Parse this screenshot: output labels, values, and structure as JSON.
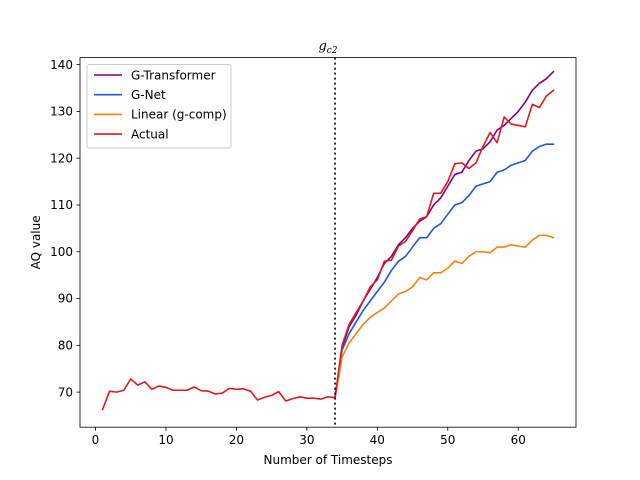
{
  "chart_data": {
    "type": "line",
    "title": "g",
    "title_subscript": "c2",
    "xlabel": "Number of Timesteps",
    "ylabel": "AQ value",
    "xlim": [
      -2.2,
      68.2
    ],
    "ylim": [
      62.5,
      141.5
    ],
    "xticks": [
      0,
      10,
      20,
      30,
      40,
      50,
      60
    ],
    "yticks": [
      70,
      80,
      90,
      100,
      110,
      120,
      130,
      140
    ],
    "grid": false,
    "legend_position": "top-left",
    "vline": {
      "x": 34,
      "style": "dotted",
      "color": "#000000"
    },
    "x": [
      1,
      2,
      3,
      4,
      5,
      6,
      7,
      8,
      9,
      10,
      11,
      12,
      13,
      14,
      15,
      16,
      17,
      18,
      19,
      20,
      21,
      22,
      23,
      24,
      25,
      26,
      27,
      28,
      29,
      30,
      31,
      32,
      33,
      34,
      35,
      36,
      37,
      38,
      39,
      40,
      41,
      42,
      43,
      44,
      45,
      46,
      47,
      48,
      49,
      50,
      51,
      52,
      53,
      54,
      55,
      56,
      57,
      58,
      59,
      60,
      61,
      62,
      63,
      64,
      65
    ],
    "series": [
      {
        "name": "G-Transformer",
        "color": "#800080",
        "values": [
          null,
          null,
          null,
          null,
          null,
          null,
          null,
          null,
          null,
          null,
          null,
          null,
          null,
          null,
          null,
          null,
          null,
          null,
          null,
          null,
          null,
          null,
          null,
          null,
          null,
          null,
          null,
          null,
          null,
          null,
          null,
          null,
          null,
          68.8,
          79.5,
          84,
          86.5,
          89.5,
          92,
          94.5,
          97.5,
          99,
          101.5,
          103,
          105,
          106.5,
          107.5,
          110,
          111.5,
          114,
          116.5,
          117,
          119.5,
          121.5,
          122,
          123.5,
          126,
          127,
          128.5,
          130,
          132,
          134.5,
          136,
          137,
          138.5
        ]
      },
      {
        "name": "G-Net",
        "color": "#1f56e0",
        "values": [
          null,
          null,
          null,
          null,
          null,
          null,
          null,
          null,
          null,
          null,
          null,
          null,
          null,
          null,
          null,
          null,
          null,
          null,
          null,
          null,
          null,
          null,
          null,
          null,
          null,
          null,
          null,
          null,
          null,
          null,
          null,
          null,
          null,
          68.8,
          79,
          82.5,
          85,
          87.5,
          89.5,
          91.5,
          93.5,
          96,
          98,
          99,
          101,
          103,
          103,
          105,
          106,
          108,
          110,
          110.5,
          112,
          114,
          114.5,
          115,
          117,
          117.5,
          118.5,
          119,
          119.5,
          121.5,
          122.5,
          123,
          123
        ]
      },
      {
        "name": "Linear (g-comp)",
        "color": "#ff7f0e",
        "values": [
          null,
          null,
          null,
          null,
          null,
          null,
          null,
          null,
          null,
          null,
          null,
          null,
          null,
          null,
          null,
          null,
          null,
          null,
          null,
          null,
          null,
          null,
          null,
          null,
          null,
          null,
          null,
          null,
          null,
          null,
          null,
          null,
          null,
          68.8,
          77.5,
          80.5,
          82.5,
          84.5,
          86,
          87,
          88,
          89.5,
          91,
          91.5,
          92.5,
          94.5,
          94,
          95.5,
          95.5,
          96.5,
          98,
          97.5,
          99,
          100,
          100,
          99.8,
          101,
          101,
          101.5,
          101.2,
          101,
          102.5,
          103.5,
          103.5,
          103
        ]
      },
      {
        "name": "Actual",
        "color": "#e31a1c",
        "values": [
          66.3,
          70.2,
          70,
          70.4,
          72.8,
          71.5,
          72.2,
          70.6,
          71.3,
          71,
          70.4,
          70.4,
          70.4,
          71.1,
          70.3,
          70.2,
          69.6,
          69.8,
          70.8,
          70.6,
          70.7,
          70.2,
          68.3,
          68.9,
          69.3,
          70.1,
          68.1,
          68.6,
          69,
          68.7,
          68.7,
          68.5,
          69,
          68.8,
          80,
          84.5,
          87,
          89.5,
          92.5,
          94,
          98,
          98.2,
          101.2,
          102.2,
          104.5,
          107,
          107.5,
          112.5,
          112.5,
          115,
          118.8,
          119,
          117.8,
          119,
          122.5,
          125.5,
          123.3,
          128.8,
          127.3,
          127,
          126.7,
          131.5,
          130.8,
          133.3,
          134.5
        ]
      }
    ]
  }
}
